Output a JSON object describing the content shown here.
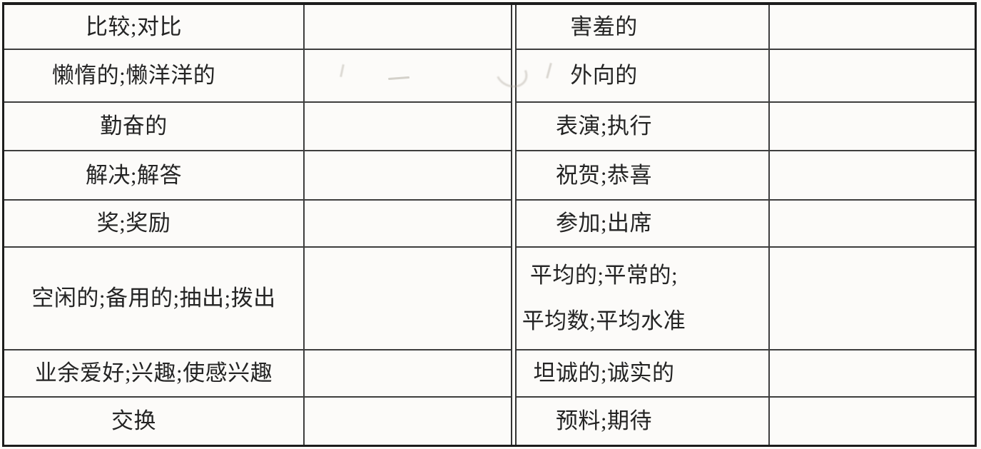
{
  "document": {
    "kind": "scanned vocabulary worksheet table",
    "ink_color": "#242424",
    "outer_border_color": "#1c1c1c",
    "grid_line_color": "#3e3e3e",
    "paper_color": "#fcfbf9"
  },
  "left_table": {
    "rows": [
      {
        "term": "比较;对比",
        "answer": ""
      },
      {
        "term": "懒惰的;懒洋洋的",
        "answer": ""
      },
      {
        "term": "勤奋的",
        "answer": ""
      },
      {
        "term": "解决;解答",
        "answer": ""
      },
      {
        "term": "奖;奖励",
        "answer": ""
      },
      {
        "term": "空闲的;备用的;抽出;拨出",
        "answer": ""
      },
      {
        "term": "业余爱好;兴趣;使感兴趣",
        "answer": ""
      },
      {
        "term": "交换",
        "answer": ""
      }
    ]
  },
  "right_table": {
    "rows": [
      {
        "term": "害羞的",
        "answer": ""
      },
      {
        "term": "外向的",
        "answer": ""
      },
      {
        "term": "表演;执行",
        "answer": ""
      },
      {
        "term": "祝贺;恭喜",
        "answer": ""
      },
      {
        "term": "参加;出席",
        "answer": ""
      },
      {
        "term": "平均的;平常的;\n平均数;平均水准",
        "answer": ""
      },
      {
        "term": "坦诚的;诚实的",
        "answer": ""
      },
      {
        "term": "预料;期待",
        "answer": ""
      }
    ]
  }
}
